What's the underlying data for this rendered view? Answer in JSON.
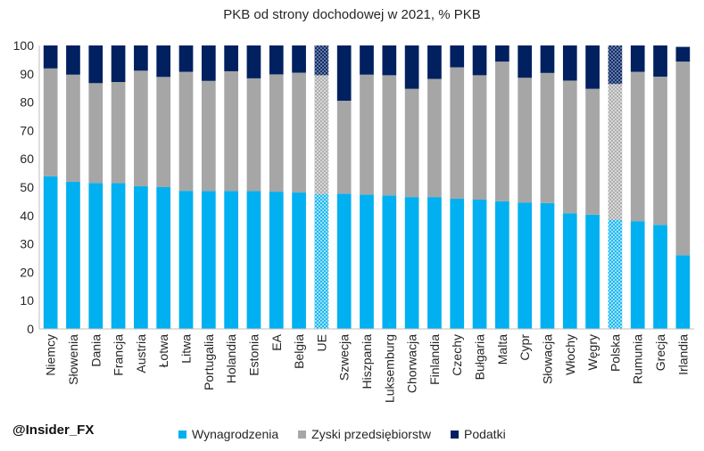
{
  "chart_data": {
    "type": "bar",
    "stacked": true,
    "title": "PKB od strony dochodowej w 2021, % PKB",
    "categories": [
      "Niemcy",
      "Słowenia",
      "Dania",
      "Francja",
      "Austria",
      "Łotwa",
      "Litwa",
      "Portugalia",
      "Holandia",
      "Estonia",
      "EA",
      "Belgia",
      "UE",
      "Szwecja",
      "Hiszpania",
      "Luksemburg",
      "Chorwacja",
      "Finlandia",
      "Czechy",
      "Bułgaria",
      "Malta",
      "Cypr",
      "Słowacja",
      "Włochy",
      "Węgry",
      "Polska",
      "Rumunia",
      "Grecja",
      "Irlandia"
    ],
    "highlighted_categories": [
      "UE",
      "Polska"
    ],
    "series": [
      {
        "name": "Wynagrodzenia",
        "color": "#00B0F0",
        "values": [
          53.8,
          51.9,
          51.5,
          51.4,
          50.3,
          50.0,
          48.7,
          48.6,
          48.6,
          48.6,
          48.4,
          48.1,
          47.5,
          47.7,
          47.4,
          47.1,
          46.5,
          46.5,
          45.9,
          45.6,
          45.0,
          44.6,
          44.4,
          40.8,
          40.3,
          38.5,
          38.0,
          36.7,
          26.0
        ]
      },
      {
        "name": "Zyski przedsiębiorstw",
        "color": "#A6A6A6",
        "values": [
          38.1,
          37.8,
          35.2,
          35.7,
          40.8,
          38.9,
          42.0,
          38.9,
          42.3,
          39.8,
          41.4,
          42.3,
          42.0,
          32.8,
          42.3,
          42.4,
          38.2,
          41.7,
          46.4,
          43.9,
          49.3,
          44.0,
          45.9,
          46.8,
          44.4,
          47.9,
          52.7,
          52.3,
          68.3
        ]
      },
      {
        "name": "Podatki",
        "color": "#002060",
        "values": [
          8.1,
          10.3,
          13.3,
          12.9,
          8.9,
          11.1,
          9.3,
          12.5,
          9.1,
          11.6,
          10.2,
          9.6,
          10.5,
          19.5,
          10.3,
          10.5,
          15.3,
          11.8,
          7.7,
          10.5,
          5.7,
          11.4,
          9.7,
          12.4,
          15.3,
          13.6,
          9.3,
          11.0,
          5.2
        ]
      }
    ],
    "ylim": [
      0,
      100
    ],
    "yticks": [
      0,
      10,
      20,
      30,
      40,
      50,
      60,
      70,
      80,
      90,
      100
    ],
    "legend_position": "bottom",
    "grid": false
  },
  "footer": {
    "handle": "@Insider_FX"
  }
}
